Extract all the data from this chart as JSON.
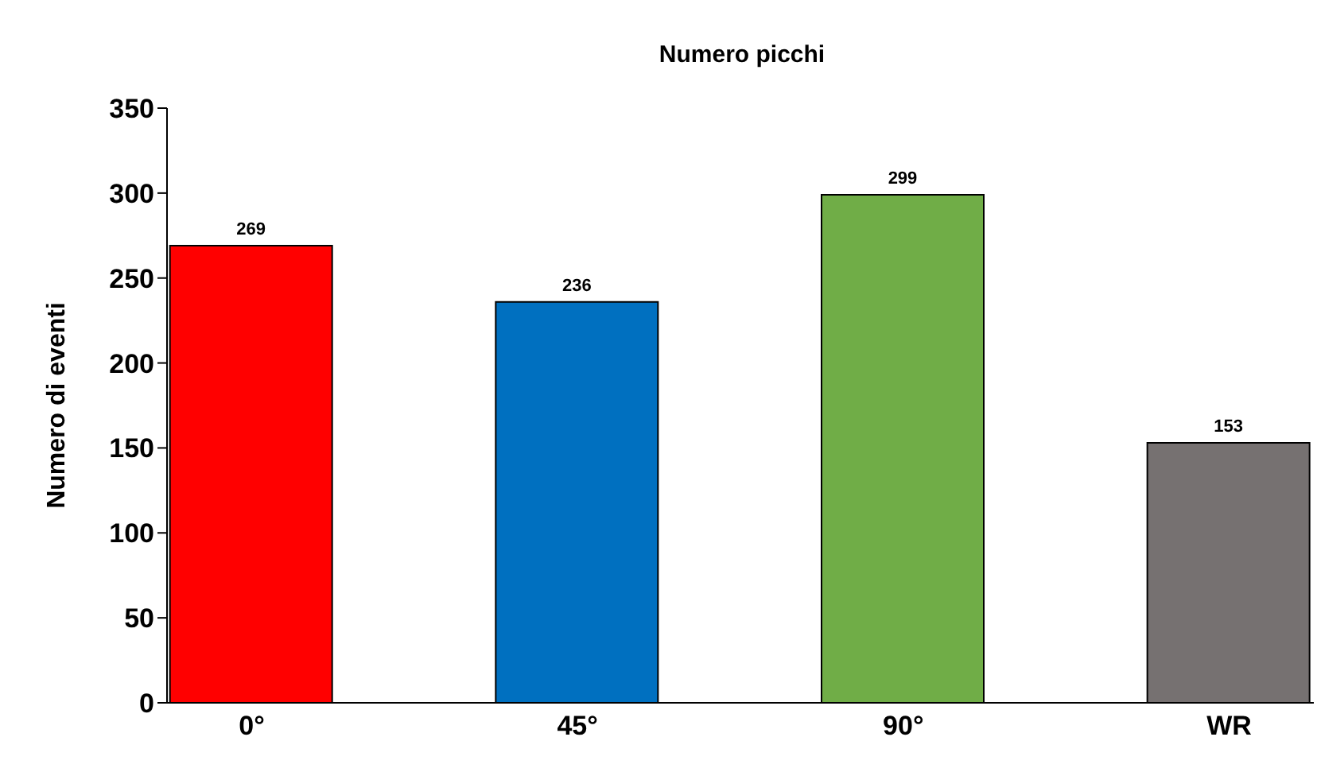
{
  "chart_data": {
    "type": "bar",
    "title": "Numero picchi",
    "ylabel": "Numero di eventi",
    "categories": [
      "0°",
      "45°",
      "90°",
      "WR"
    ],
    "values": [
      269,
      236,
      299,
      153
    ],
    "colors": [
      "#ff0000",
      "#0070c0",
      "#70ad47",
      "#767171"
    ],
    "ylim": [
      0,
      350
    ],
    "yticks": [
      0,
      50,
      100,
      150,
      200,
      250,
      300,
      350
    ],
    "data_labels": true
  }
}
